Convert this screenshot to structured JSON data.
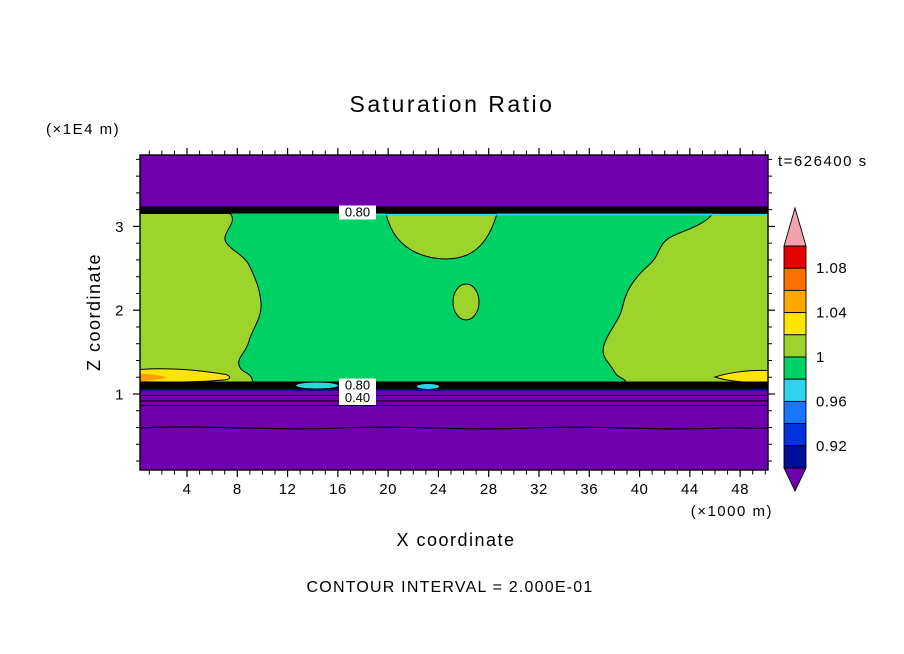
{
  "chart_data": {
    "type": "heatmap",
    "subtype": "filled contour plot",
    "title": "Saturation Ratio",
    "xlabel": "X coordinate",
    "ylabel": "Z coordinate",
    "x_unit": "(×1000 m)",
    "y_unit": "(×1E4 m)",
    "time": "t=626400 s",
    "caption": "CONTOUR INTERVAL = 2.000E-01",
    "contour_interval": 0.2,
    "x_ticks": [
      4,
      8,
      12,
      16,
      20,
      24,
      28,
      32,
      36,
      40,
      44,
      48
    ],
    "y_ticks": [
      1,
      2,
      3
    ],
    "x_range": [
      0.3,
      50.3
    ],
    "y_range": [
      0.1,
      3.85
    ],
    "grid": false,
    "legend_position": "right colorbar with over/under arrows",
    "colorbar": {
      "labels": [
        "1.08",
        "1.04",
        "1",
        "0.96",
        "0.92"
      ],
      "values": [
        1.08,
        1.04,
        1.0,
        0.96,
        0.92
      ],
      "colors_top_to_bottom": [
        "#e60000",
        "#ff6f00",
        "#ffa800",
        "#ffe400",
        "#9cd42c",
        "#00d165",
        "#2fd4f0",
        "#1577ff",
        "#0033dd",
        "#000f99"
      ],
      "over_color": "#f2a2ae",
      "under_color": "#7000ad"
    },
    "contour_labels": [
      {
        "text": "0.80",
        "x": 17.5,
        "z": 3.15
      },
      {
        "text": "0.80",
        "x": 17.5,
        "z": 1.1
      },
      {
        "text": "0.40",
        "x": 17.5,
        "z": 0.96
      }
    ],
    "field_regions": [
      {
        "region": "top band, z ≈ 3.30–3.85 (×1E4 m), all x",
        "saturation_ratio": "< 0.40",
        "color": "purple"
      },
      {
        "region": "sharp gradient layer at z ≈ 3.25, all x",
        "saturation_ratio": "0.40–0.92 dense contours, 0.80 labeled",
        "color": "black band"
      },
      {
        "region": "main layer, z ≈ 1.10–3.20",
        "saturation_ratio": "≈ 0.96–1.00",
        "color": "green"
      },
      {
        "region": "patches: x < 9 (left), x > 38 (right), x ≈ 20–28 blob under top band, small oval near x ≈ 26, z ≈ 2.1",
        "saturation_ratio": "≈ 1.00–1.04",
        "color": "chartreuse"
      },
      {
        "region": "thin spots at z ≈ 1.15, x ≈ 1–7 and x ≈ 46–50",
        "saturation_ratio": "≈ 1.04–1.10",
        "color": "yellow/orange"
      },
      {
        "region": "thin spots at z ≈ 1.05, x ≈ 13–16 and x ≈ 23",
        "saturation_ratio": "≈ 0.92–0.96",
        "color": "cyan"
      },
      {
        "region": "sharp gradient layer z ≈ 0.95–1.10, all x",
        "saturation_ratio": "0.40–0.92 dense contours, 0.80 and 0.40 labeled",
        "color": "black band"
      },
      {
        "region": "bottom band, z < 0.95, all x",
        "saturation_ratio": "< 0.40",
        "color": "purple"
      }
    ]
  },
  "colors": {
    "background": "#ffffff",
    "purple": "#7000ad",
    "green": "#00d165",
    "chartreuse": "#9cd42c",
    "yellow": "#ffe400",
    "orange": "#ffa000",
    "cyan": "#2fd4f0",
    "navy": "#000f99",
    "black": "#000000",
    "frame": "#000000"
  }
}
